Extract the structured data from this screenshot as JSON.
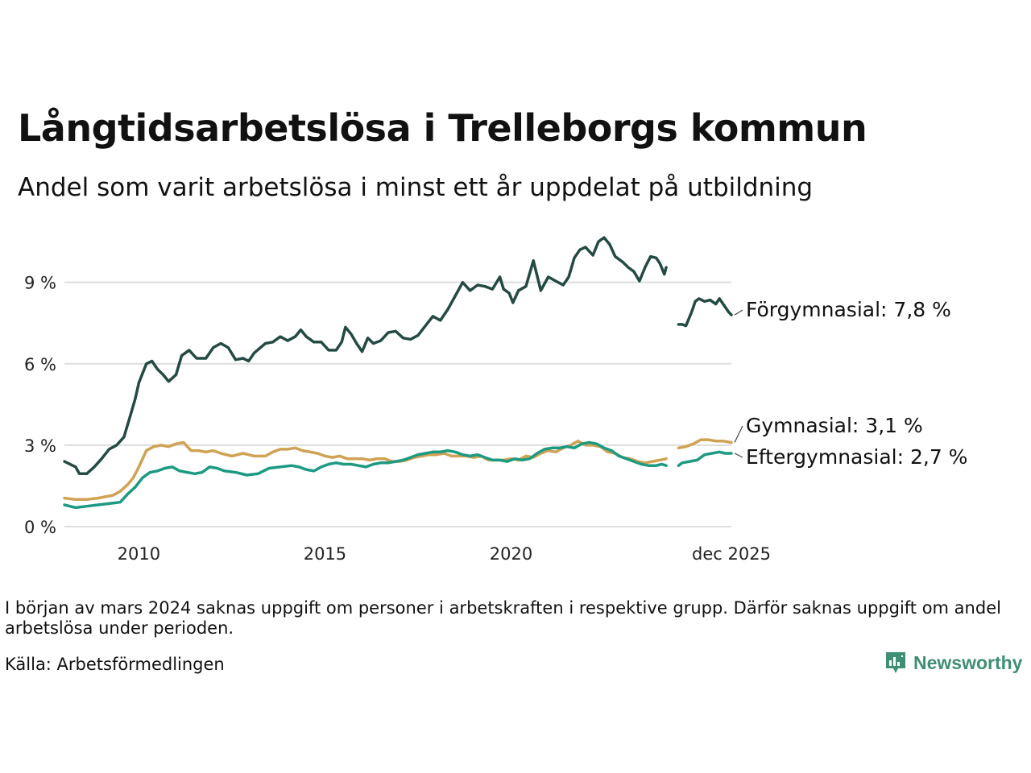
{
  "title": "Långtidsarbetslösa i Trelleborgs kommun",
  "subtitle": "Andel som varit arbetslösa i minst ett år uppdelat på utbildning",
  "note": "I början av mars 2024 saknas uppgift om personer i arbetskraften i respektive grupp. Därför saknas uppgift om andel arbetslösa under perioden.",
  "source": "Källa: Arbetsförmedlingen",
  "brand": "Newsworthy",
  "colors": {
    "forgymnasial": "#234a43",
    "gymnasial": "#d0a253",
    "eftergymnasial": "#1d9a82",
    "grid": "#dddddd",
    "brand": "#3f8f74"
  },
  "chart_data": {
    "type": "line",
    "title": "Långtidsarbetslösa i Trelleborgs kommun",
    "ylim": [
      0,
      10.8
    ],
    "xlim": [
      2008.0,
      2025.92
    ],
    "y_ticks": [
      {
        "value": 0,
        "label": "0 %"
      },
      {
        "value": 3,
        "label": "3 %"
      },
      {
        "value": 6,
        "label": "6 %"
      },
      {
        "value": 9,
        "label": "9 %"
      }
    ],
    "x_ticks": [
      {
        "value": 2010,
        "label": "2010"
      },
      {
        "value": 2015,
        "label": "2015"
      },
      {
        "value": 2020,
        "label": "2020"
      },
      {
        "value": 2025.92,
        "label": "dec 2025"
      }
    ],
    "gap": [
      2024.17,
      2024.5
    ],
    "series": [
      {
        "name": "Förgymnasial",
        "end_label": "Förgymnasial: 7,8 %",
        "last_value": 7.8,
        "color_key": "forgymnasial",
        "points": [
          [
            2008.0,
            2.4
          ],
          [
            2008.3,
            2.2
          ],
          [
            2008.4,
            1.95
          ],
          [
            2008.6,
            1.95
          ],
          [
            2008.8,
            2.2
          ],
          [
            2009.0,
            2.5
          ],
          [
            2009.2,
            2.85
          ],
          [
            2009.4,
            3.0
          ],
          [
            2009.6,
            3.3
          ],
          [
            2009.75,
            4.0
          ],
          [
            2009.9,
            4.7
          ],
          [
            2010.0,
            5.3
          ],
          [
            2010.2,
            6.0
          ],
          [
            2010.35,
            6.1
          ],
          [
            2010.5,
            5.8
          ],
          [
            2010.65,
            5.6
          ],
          [
            2010.8,
            5.35
          ],
          [
            2011.0,
            5.6
          ],
          [
            2011.15,
            6.3
          ],
          [
            2011.35,
            6.5
          ],
          [
            2011.55,
            6.2
          ],
          [
            2011.8,
            6.2
          ],
          [
            2012.0,
            6.6
          ],
          [
            2012.2,
            6.75
          ],
          [
            2012.4,
            6.6
          ],
          [
            2012.6,
            6.15
          ],
          [
            2012.8,
            6.2
          ],
          [
            2012.95,
            6.1
          ],
          [
            2013.1,
            6.4
          ],
          [
            2013.4,
            6.75
          ],
          [
            2013.6,
            6.8
          ],
          [
            2013.8,
            7.0
          ],
          [
            2014.0,
            6.85
          ],
          [
            2014.2,
            7.0
          ],
          [
            2014.35,
            7.25
          ],
          [
            2014.5,
            7.0
          ],
          [
            2014.7,
            6.8
          ],
          [
            2014.9,
            6.8
          ],
          [
            2015.1,
            6.5
          ],
          [
            2015.3,
            6.5
          ],
          [
            2015.45,
            6.8
          ],
          [
            2015.55,
            7.35
          ],
          [
            2015.7,
            7.1
          ],
          [
            2015.85,
            6.75
          ],
          [
            2016.0,
            6.45
          ],
          [
            2016.15,
            6.95
          ],
          [
            2016.3,
            6.75
          ],
          [
            2016.5,
            6.85
          ],
          [
            2016.7,
            7.15
          ],
          [
            2016.9,
            7.2
          ],
          [
            2017.1,
            6.95
          ],
          [
            2017.3,
            6.9
          ],
          [
            2017.5,
            7.05
          ],
          [
            2017.7,
            7.4
          ],
          [
            2017.9,
            7.75
          ],
          [
            2018.1,
            7.6
          ],
          [
            2018.3,
            8.0
          ],
          [
            2018.5,
            8.5
          ],
          [
            2018.7,
            9.0
          ],
          [
            2018.9,
            8.7
          ],
          [
            2019.1,
            8.9
          ],
          [
            2019.3,
            8.85
          ],
          [
            2019.5,
            8.75
          ],
          [
            2019.7,
            9.2
          ],
          [
            2019.8,
            8.75
          ],
          [
            2019.95,
            8.6
          ],
          [
            2020.05,
            8.25
          ],
          [
            2020.2,
            8.7
          ],
          [
            2020.4,
            8.85
          ],
          [
            2020.6,
            9.8
          ],
          [
            2020.8,
            8.7
          ],
          [
            2021.0,
            9.2
          ],
          [
            2021.2,
            9.05
          ],
          [
            2021.4,
            8.9
          ],
          [
            2021.55,
            9.2
          ],
          [
            2021.7,
            9.9
          ],
          [
            2021.85,
            10.2
          ],
          [
            2022.0,
            10.3
          ],
          [
            2022.2,
            10.0
          ],
          [
            2022.35,
            10.5
          ],
          [
            2022.5,
            10.65
          ],
          [
            2022.65,
            10.4
          ],
          [
            2022.8,
            9.95
          ],
          [
            2023.0,
            9.75
          ],
          [
            2023.15,
            9.55
          ],
          [
            2023.3,
            9.4
          ],
          [
            2023.45,
            9.05
          ],
          [
            2023.6,
            9.55
          ],
          [
            2023.75,
            9.95
          ],
          [
            2023.9,
            9.9
          ],
          [
            2024.0,
            9.7
          ],
          [
            2024.12,
            9.3
          ],
          [
            2024.17,
            9.55
          ],
          [
            2024.5,
            7.45
          ],
          [
            2024.6,
            7.45
          ],
          [
            2024.7,
            7.4
          ],
          [
            2024.85,
            7.9
          ],
          [
            2024.95,
            8.3
          ],
          [
            2025.05,
            8.4
          ],
          [
            2025.2,
            8.3
          ],
          [
            2025.35,
            8.35
          ],
          [
            2025.5,
            8.2
          ],
          [
            2025.6,
            8.4
          ],
          [
            2025.7,
            8.2
          ],
          [
            2025.85,
            7.9
          ],
          [
            2025.92,
            7.8
          ]
        ]
      },
      {
        "name": "Gymnasial",
        "end_label": "Gymnasial: 3,1 %",
        "last_value": 3.1,
        "color_key": "gymnasial",
        "points": [
          [
            2008.0,
            1.05
          ],
          [
            2008.3,
            1.0
          ],
          [
            2008.6,
            1.0
          ],
          [
            2008.9,
            1.05
          ],
          [
            2009.1,
            1.1
          ],
          [
            2009.3,
            1.15
          ],
          [
            2009.5,
            1.3
          ],
          [
            2009.7,
            1.55
          ],
          [
            2009.85,
            1.8
          ],
          [
            2010.0,
            2.2
          ],
          [
            2010.2,
            2.8
          ],
          [
            2010.4,
            2.95
          ],
          [
            2010.6,
            3.0
          ],
          [
            2010.8,
            2.95
          ],
          [
            2011.0,
            3.05
          ],
          [
            2011.2,
            3.1
          ],
          [
            2011.4,
            2.8
          ],
          [
            2011.6,
            2.8
          ],
          [
            2011.8,
            2.75
          ],
          [
            2012.0,
            2.8
          ],
          [
            2012.2,
            2.7
          ],
          [
            2012.5,
            2.6
          ],
          [
            2012.8,
            2.7
          ],
          [
            2013.1,
            2.6
          ],
          [
            2013.4,
            2.6
          ],
          [
            2013.6,
            2.75
          ],
          [
            2013.8,
            2.85
          ],
          [
            2014.0,
            2.85
          ],
          [
            2014.2,
            2.9
          ],
          [
            2014.4,
            2.8
          ],
          [
            2014.6,
            2.75
          ],
          [
            2014.8,
            2.7
          ],
          [
            2015.0,
            2.6
          ],
          [
            2015.2,
            2.55
          ],
          [
            2015.4,
            2.6
          ],
          [
            2015.6,
            2.5
          ],
          [
            2015.8,
            2.5
          ],
          [
            2016.0,
            2.5
          ],
          [
            2016.2,
            2.45
          ],
          [
            2016.4,
            2.5
          ],
          [
            2016.6,
            2.5
          ],
          [
            2016.8,
            2.4
          ],
          [
            2017.0,
            2.4
          ],
          [
            2017.2,
            2.45
          ],
          [
            2017.4,
            2.55
          ],
          [
            2017.6,
            2.6
          ],
          [
            2017.8,
            2.65
          ],
          [
            2018.0,
            2.65
          ],
          [
            2018.2,
            2.7
          ],
          [
            2018.4,
            2.6
          ],
          [
            2018.6,
            2.6
          ],
          [
            2018.8,
            2.6
          ],
          [
            2019.0,
            2.55
          ],
          [
            2019.2,
            2.6
          ],
          [
            2019.4,
            2.45
          ],
          [
            2019.6,
            2.45
          ],
          [
            2019.8,
            2.45
          ],
          [
            2020.0,
            2.5
          ],
          [
            2020.2,
            2.45
          ],
          [
            2020.4,
            2.6
          ],
          [
            2020.6,
            2.55
          ],
          [
            2020.8,
            2.7
          ],
          [
            2021.0,
            2.8
          ],
          [
            2021.2,
            2.75
          ],
          [
            2021.4,
            2.9
          ],
          [
            2021.6,
            3.0
          ],
          [
            2021.8,
            3.15
          ],
          [
            2022.0,
            3.0
          ],
          [
            2022.2,
            3.0
          ],
          [
            2022.4,
            2.95
          ],
          [
            2022.6,
            2.75
          ],
          [
            2022.8,
            2.7
          ],
          [
            2023.0,
            2.55
          ],
          [
            2023.2,
            2.5
          ],
          [
            2023.4,
            2.4
          ],
          [
            2023.6,
            2.35
          ],
          [
            2023.8,
            2.4
          ],
          [
            2024.0,
            2.45
          ],
          [
            2024.17,
            2.5
          ],
          [
            2024.5,
            2.9
          ],
          [
            2024.7,
            2.95
          ],
          [
            2024.9,
            3.05
          ],
          [
            2025.1,
            3.2
          ],
          [
            2025.3,
            3.2
          ],
          [
            2025.5,
            3.15
          ],
          [
            2025.7,
            3.15
          ],
          [
            2025.92,
            3.1
          ]
        ]
      },
      {
        "name": "Eftergymnasial",
        "end_label": "Eftergymnasial: 2,7 %",
        "last_value": 2.7,
        "color_key": "eftergymnasial",
        "points": [
          [
            2008.0,
            0.8
          ],
          [
            2008.3,
            0.7
          ],
          [
            2008.6,
            0.75
          ],
          [
            2008.9,
            0.8
          ],
          [
            2009.2,
            0.85
          ],
          [
            2009.5,
            0.9
          ],
          [
            2009.7,
            1.2
          ],
          [
            2009.9,
            1.45
          ],
          [
            2010.1,
            1.8
          ],
          [
            2010.3,
            2.0
          ],
          [
            2010.5,
            2.05
          ],
          [
            2010.7,
            2.15
          ],
          [
            2010.9,
            2.2
          ],
          [
            2011.1,
            2.05
          ],
          [
            2011.3,
            2.0
          ],
          [
            2011.5,
            1.95
          ],
          [
            2011.7,
            2.0
          ],
          [
            2011.9,
            2.2
          ],
          [
            2012.1,
            2.15
          ],
          [
            2012.3,
            2.05
          ],
          [
            2012.6,
            2.0
          ],
          [
            2012.9,
            1.9
          ],
          [
            2013.2,
            1.95
          ],
          [
            2013.5,
            2.15
          ],
          [
            2013.8,
            2.2
          ],
          [
            2014.1,
            2.25
          ],
          [
            2014.3,
            2.2
          ],
          [
            2014.5,
            2.1
          ],
          [
            2014.7,
            2.05
          ],
          [
            2014.9,
            2.2
          ],
          [
            2015.1,
            2.3
          ],
          [
            2015.3,
            2.35
          ],
          [
            2015.5,
            2.3
          ],
          [
            2015.7,
            2.3
          ],
          [
            2015.9,
            2.25
          ],
          [
            2016.1,
            2.2
          ],
          [
            2016.3,
            2.3
          ],
          [
            2016.5,
            2.35
          ],
          [
            2016.7,
            2.35
          ],
          [
            2016.9,
            2.4
          ],
          [
            2017.1,
            2.45
          ],
          [
            2017.3,
            2.55
          ],
          [
            2017.5,
            2.65
          ],
          [
            2017.7,
            2.7
          ],
          [
            2017.9,
            2.75
          ],
          [
            2018.1,
            2.75
          ],
          [
            2018.3,
            2.8
          ],
          [
            2018.5,
            2.75
          ],
          [
            2018.7,
            2.65
          ],
          [
            2018.9,
            2.6
          ],
          [
            2019.1,
            2.65
          ],
          [
            2019.3,
            2.55
          ],
          [
            2019.5,
            2.45
          ],
          [
            2019.7,
            2.45
          ],
          [
            2019.9,
            2.4
          ],
          [
            2020.1,
            2.5
          ],
          [
            2020.3,
            2.45
          ],
          [
            2020.5,
            2.5
          ],
          [
            2020.7,
            2.7
          ],
          [
            2020.9,
            2.85
          ],
          [
            2021.1,
            2.9
          ],
          [
            2021.3,
            2.9
          ],
          [
            2021.5,
            2.95
          ],
          [
            2021.7,
            2.9
          ],
          [
            2021.9,
            3.05
          ],
          [
            2022.1,
            3.1
          ],
          [
            2022.3,
            3.05
          ],
          [
            2022.5,
            2.9
          ],
          [
            2022.7,
            2.8
          ],
          [
            2022.9,
            2.6
          ],
          [
            2023.1,
            2.5
          ],
          [
            2023.3,
            2.4
          ],
          [
            2023.5,
            2.3
          ],
          [
            2023.7,
            2.25
          ],
          [
            2023.9,
            2.25
          ],
          [
            2024.05,
            2.3
          ],
          [
            2024.17,
            2.25
          ],
          [
            2024.5,
            2.25
          ],
          [
            2024.6,
            2.35
          ],
          [
            2024.8,
            2.4
          ],
          [
            2025.0,
            2.45
          ],
          [
            2025.2,
            2.65
          ],
          [
            2025.4,
            2.7
          ],
          [
            2025.6,
            2.75
          ],
          [
            2025.75,
            2.7
          ],
          [
            2025.92,
            2.7
          ]
        ]
      }
    ]
  }
}
